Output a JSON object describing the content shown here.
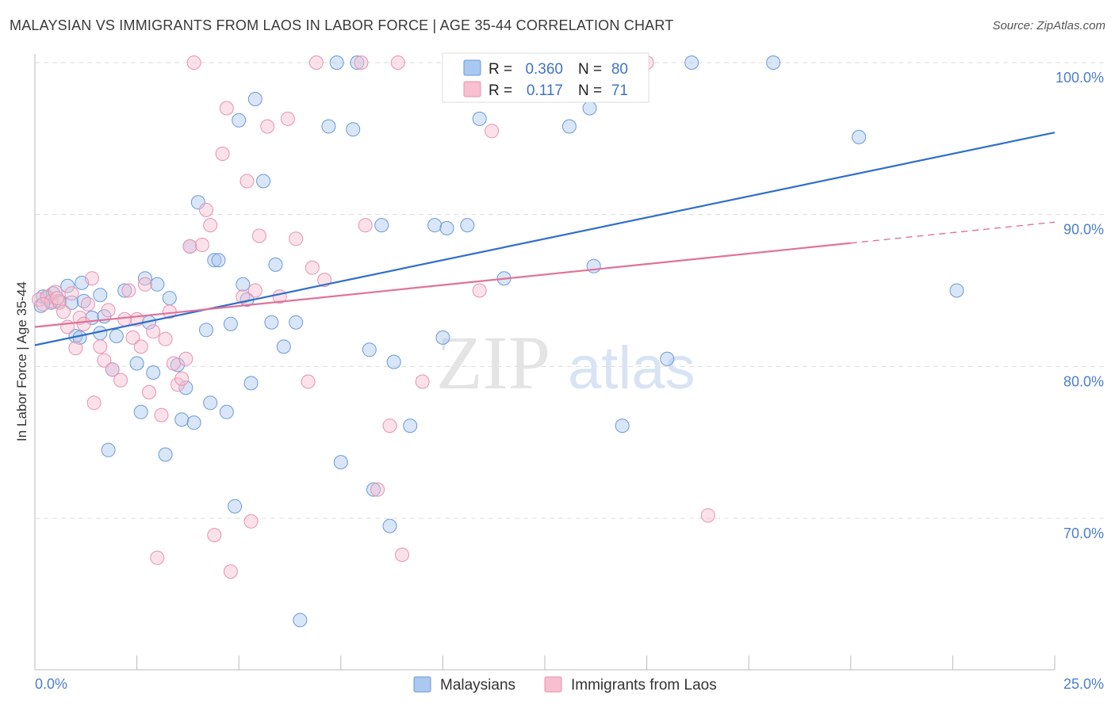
{
  "title": "MALAYSIAN VS IMMIGRANTS FROM LAOS IN LABOR FORCE | AGE 35-44 CORRELATION CHART",
  "source": "Source: ZipAtlas.com",
  "watermark": {
    "zip": "ZIP",
    "atlas": "atlas"
  },
  "colors": {
    "blue_fill": "#aac8f0",
    "blue_stroke": "#6a9ad8",
    "blue_line": "#2f6fc9",
    "pink_fill": "#f7bfd0",
    "pink_stroke": "#e892ad",
    "pink_line": "#e0729a",
    "grid": "#dddddd",
    "tick_text": "#4a7fd0"
  },
  "legend": {
    "r_label": "R =",
    "n_label": "N =",
    "series": [
      {
        "r": "0.360",
        "n": "80"
      },
      {
        "r": "0.117",
        "n": "71"
      }
    ]
  },
  "chart_data": {
    "type": "scatter",
    "title": "MALAYSIAN VS IMMIGRANTS FROM LAOS IN LABOR FORCE | AGE 35-44 CORRELATION CHART",
    "xlabel": "",
    "ylabel": "In Labor Force | Age 35-44",
    "xlim": [
      0,
      25
    ],
    "ylim": [
      60,
      101
    ],
    "x_tick_labels": [
      "0.0%",
      "25.0%"
    ],
    "y_ticks": [
      70,
      80,
      90,
      100
    ],
    "y_tick_labels": [
      "70.0%",
      "80.0%",
      "90.0%",
      "100.0%"
    ],
    "grid": true,
    "series": [
      {
        "name": "Malaysians",
        "color": "blue",
        "trend": {
          "x1": 0,
          "y1": 81.4,
          "x2": 25,
          "y2": 95.4,
          "dash_from": null
        },
        "points": [
          [
            0.15,
            84.0
          ],
          [
            0.3,
            84.5
          ],
          [
            0.4,
            84.2
          ],
          [
            0.45,
            84.8
          ],
          [
            0.6,
            84.3
          ],
          [
            0.8,
            85.3
          ],
          [
            0.9,
            84.2
          ],
          [
            1.0,
            82.0
          ],
          [
            1.15,
            85.5
          ],
          [
            1.2,
            84.3
          ],
          [
            1.4,
            83.2
          ],
          [
            1.6,
            82.2
          ],
          [
            1.6,
            84.7
          ],
          [
            1.7,
            83.3
          ],
          [
            1.8,
            74.5
          ],
          [
            1.9,
            79.8
          ],
          [
            2.0,
            82.0
          ],
          [
            2.2,
            85.0
          ],
          [
            2.5,
            80.2
          ],
          [
            2.6,
            77.0
          ],
          [
            2.7,
            85.8
          ],
          [
            2.8,
            82.9
          ],
          [
            2.9,
            79.6
          ],
          [
            3.0,
            85.4
          ],
          [
            3.2,
            74.2
          ],
          [
            3.3,
            84.5
          ],
          [
            3.5,
            80.1
          ],
          [
            3.6,
            76.5
          ],
          [
            3.7,
            78.6
          ],
          [
            3.8,
            87.9
          ],
          [
            3.9,
            76.3
          ],
          [
            4.0,
            90.8
          ],
          [
            4.2,
            82.4
          ],
          [
            4.3,
            77.6
          ],
          [
            4.4,
            87.0
          ],
          [
            4.5,
            87.0
          ],
          [
            4.7,
            77.0
          ],
          [
            4.8,
            82.8
          ],
          [
            4.9,
            70.8
          ],
          [
            5.0,
            96.2
          ],
          [
            5.1,
            85.4
          ],
          [
            5.2,
            84.4
          ],
          [
            5.3,
            78.9
          ],
          [
            5.4,
            97.6
          ],
          [
            5.6,
            92.2
          ],
          [
            5.8,
            82.9
          ],
          [
            5.9,
            86.7
          ],
          [
            6.1,
            81.3
          ],
          [
            6.4,
            82.9
          ],
          [
            6.5,
            63.3
          ],
          [
            7.2,
            95.8
          ],
          [
            7.4,
            100.0
          ],
          [
            7.5,
            73.7
          ],
          [
            7.8,
            95.6
          ],
          [
            7.9,
            100.0
          ],
          [
            8.2,
            81.1
          ],
          [
            8.3,
            71.9
          ],
          [
            8.5,
            89.3
          ],
          [
            8.7,
            69.5
          ],
          [
            8.8,
            80.3
          ],
          [
            9.2,
            76.1
          ],
          [
            9.8,
            89.3
          ],
          [
            10.0,
            81.9
          ],
          [
            10.1,
            89.1
          ],
          [
            10.6,
            89.3
          ],
          [
            10.9,
            96.3
          ],
          [
            11.5,
            85.8
          ],
          [
            11.6,
            100.0
          ],
          [
            13.1,
            95.8
          ],
          [
            13.5,
            100.0
          ],
          [
            13.6,
            97.0
          ],
          [
            13.7,
            86.6
          ],
          [
            14.4,
            76.1
          ],
          [
            15.5,
            80.5
          ],
          [
            16.1,
            100.0
          ],
          [
            18.1,
            100.0
          ],
          [
            20.2,
            95.1
          ],
          [
            22.6,
            85.0
          ],
          [
            0.2,
            84.6
          ],
          [
            1.1,
            81.9
          ]
        ]
      },
      {
        "name": "Immigrants from Laos",
        "color": "pink",
        "trend": {
          "x1": 0,
          "y1": 82.6,
          "x2": 25,
          "y2": 89.5,
          "dash_from": 20
        },
        "points": [
          [
            0.1,
            84.4
          ],
          [
            0.3,
            84.6
          ],
          [
            0.4,
            84.3
          ],
          [
            0.5,
            84.9
          ],
          [
            0.6,
            84.2
          ],
          [
            0.7,
            83.6
          ],
          [
            0.8,
            82.6
          ],
          [
            0.9,
            84.8
          ],
          [
            1.0,
            81.2
          ],
          [
            1.1,
            83.2
          ],
          [
            1.2,
            82.8
          ],
          [
            1.4,
            85.8
          ],
          [
            1.45,
            77.6
          ],
          [
            1.6,
            81.3
          ],
          [
            1.7,
            80.4
          ],
          [
            1.8,
            83.7
          ],
          [
            1.9,
            79.8
          ],
          [
            2.1,
            79.1
          ],
          [
            2.3,
            85.0
          ],
          [
            2.4,
            81.9
          ],
          [
            2.5,
            83.1
          ],
          [
            2.6,
            81.3
          ],
          [
            2.7,
            85.4
          ],
          [
            2.8,
            78.3
          ],
          [
            2.9,
            82.3
          ],
          [
            3.0,
            67.4
          ],
          [
            3.1,
            76.8
          ],
          [
            3.2,
            81.8
          ],
          [
            3.3,
            83.6
          ],
          [
            3.4,
            80.2
          ],
          [
            3.5,
            78.8
          ],
          [
            3.6,
            79.2
          ],
          [
            3.7,
            80.5
          ],
          [
            3.8,
            87.9
          ],
          [
            3.9,
            100.0
          ],
          [
            4.1,
            88.0
          ],
          [
            4.2,
            90.3
          ],
          [
            4.3,
            89.3
          ],
          [
            4.4,
            68.9
          ],
          [
            4.6,
            94.0
          ],
          [
            4.7,
            97.0
          ],
          [
            4.8,
            66.5
          ],
          [
            5.1,
            84.6
          ],
          [
            5.2,
            92.2
          ],
          [
            5.3,
            69.8
          ],
          [
            5.4,
            85.0
          ],
          [
            5.5,
            88.6
          ],
          [
            5.7,
            95.8
          ],
          [
            6.0,
            84.6
          ],
          [
            6.2,
            96.3
          ],
          [
            6.4,
            88.4
          ],
          [
            6.7,
            79.0
          ],
          [
            6.8,
            86.5
          ],
          [
            6.9,
            100.0
          ],
          [
            7.1,
            85.7
          ],
          [
            8.0,
            100.0
          ],
          [
            8.1,
            89.3
          ],
          [
            8.4,
            71.9
          ],
          [
            8.7,
            76.1
          ],
          [
            8.9,
            100.0
          ],
          [
            9.0,
            67.6
          ],
          [
            9.5,
            79.0
          ],
          [
            10.9,
            85.0
          ],
          [
            11.2,
            95.5
          ],
          [
            14.5,
            100.0
          ],
          [
            15.0,
            100.0
          ],
          [
            16.5,
            70.2
          ],
          [
            0.2,
            84.1
          ],
          [
            1.3,
            84.1
          ],
          [
            2.2,
            83.1
          ],
          [
            0.55,
            84.5
          ]
        ]
      }
    ]
  },
  "bottom_legend": [
    "Malaysians",
    "Immigrants from Laos"
  ]
}
